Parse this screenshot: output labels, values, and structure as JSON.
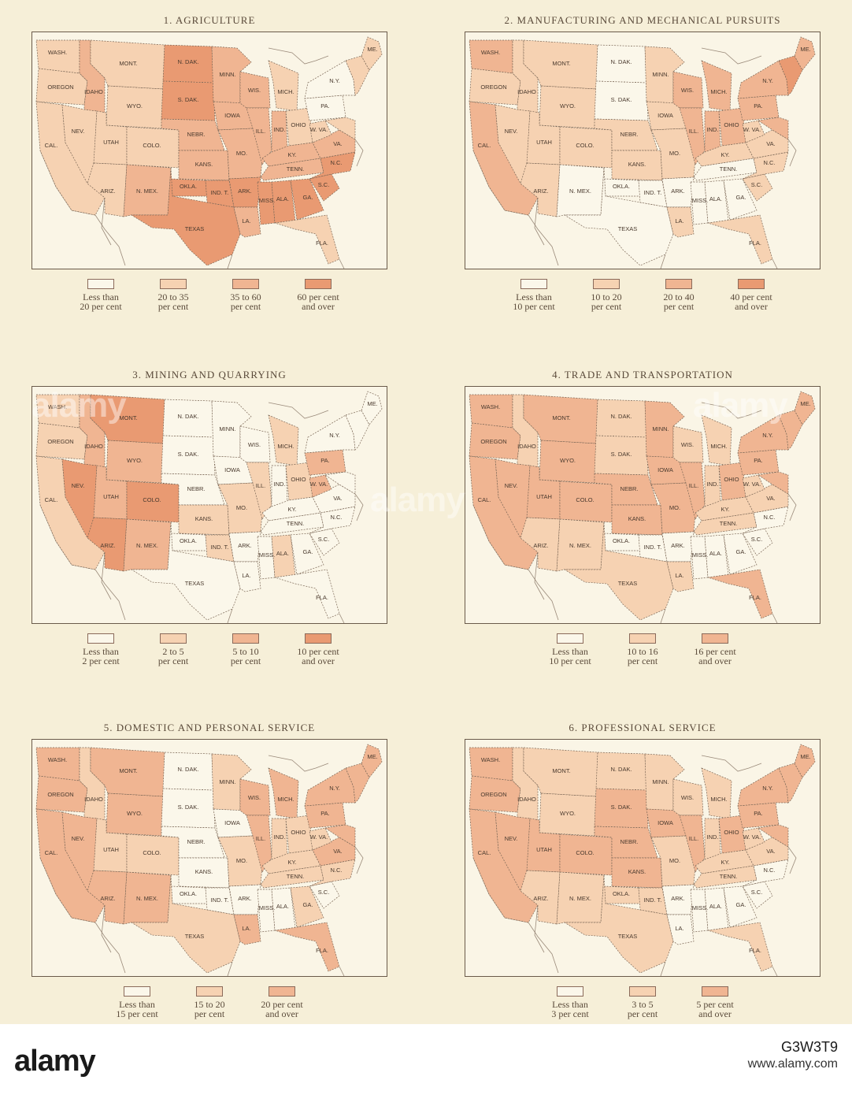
{
  "colors": {
    "level0": "#fbf7ea",
    "level1": "#f6d2b2",
    "level2": "#f0b592",
    "level3": "#e99a72",
    "border": "#7a6655",
    "coast": "#9a8a7a"
  },
  "state_order": [
    "WA",
    "OR",
    "CA",
    "ID",
    "NV",
    "MT",
    "WY",
    "UT",
    "AZ",
    "CO",
    "NM",
    "ND",
    "SD",
    "NE",
    "KS",
    "OK",
    "IT",
    "TX",
    "MN",
    "IA",
    "MO",
    "AR",
    "LA",
    "WI",
    "IL",
    "MI",
    "IN",
    "OH",
    "KY",
    "TN",
    "MS",
    "AL",
    "GA",
    "FL",
    "SC",
    "NC",
    "VA",
    "WV",
    "PA",
    "NY",
    "MD",
    "NE_ST",
    "ME"
  ],
  "state_labels": {
    "WA": "WASH.",
    "OR": "OREGON",
    "CA": "CAL.",
    "ID": "IDAHO",
    "NV": "NEV.",
    "MT": "MONT.",
    "WY": "WYO.",
    "UT": "UTAH",
    "AZ": "ARIZ.",
    "CO": "COLO.",
    "NM": "N. MEX.",
    "ND": "N. DAK.",
    "SD": "S. DAK.",
    "NE": "NEBR.",
    "KS": "KANS.",
    "OK": "OKLA.",
    "IT": "IND. T.",
    "TX": "TEXAS",
    "MN": "MINN.",
    "IA": "IOWA",
    "MO": "MO.",
    "AR": "ARK.",
    "LA": "LA.",
    "WI": "WIS.",
    "IL": "ILL.",
    "MI": "MICH.",
    "IN": "IND.",
    "OH": "OHIO",
    "KY": "KY.",
    "TN": "TENN.",
    "MS": "MISS.",
    "AL": "ALA.",
    "GA": "GA.",
    "FL": "FLA.",
    "SC": "S.C.",
    "NC": "N.C.",
    "VA": "VA.",
    "WV": "W. VA.",
    "PA": "PA.",
    "NY": "N.Y.",
    "MD": "",
    "NE_ST": "",
    "ME": "ME."
  },
  "footer": {
    "brand": "alamy",
    "image_id": "G3W3T9",
    "url": "www.alamy.com"
  },
  "watermark": "alamy",
  "maps": [
    {
      "title": "1. AGRICULTURE",
      "legend": [
        {
          "line1": "Less than",
          "line2": "20 per cent",
          "level": 0
        },
        {
          "line1": "20 to 35",
          "line2": "per cent",
          "level": 1
        },
        {
          "line1": "35 to 60",
          "line2": "per cent",
          "level": 2
        },
        {
          "line1": "60 per cent",
          "line2": "and over",
          "level": 3
        }
      ],
      "levels": {
        "WA": 1,
        "OR": 1,
        "CA": 1,
        "ID": 2,
        "NV": 1,
        "MT": 1,
        "WY": 1,
        "UT": 1,
        "AZ": 1,
        "CO": 1,
        "NM": 2,
        "ND": 3,
        "SD": 3,
        "NE": 2,
        "KS": 2,
        "OK": 3,
        "IT": 3,
        "TX": 3,
        "MN": 2,
        "IA": 2,
        "MO": 2,
        "AR": 3,
        "LA": 2,
        "WI": 2,
        "IL": 2,
        "MI": 1,
        "IN": 2,
        "OH": 1,
        "KY": 2,
        "TN": 2,
        "MS": 3,
        "AL": 3,
        "GA": 3,
        "FL": 1,
        "SC": 3,
        "NC": 3,
        "VA": 2,
        "WV": 1,
        "PA": 0,
        "NY": 0,
        "MD": 1,
        "NE_ST": 1,
        "ME": 1
      }
    },
    {
      "title": "2. MANUFACTURING AND MECHANICAL PURSUITS",
      "legend": [
        {
          "line1": "Less than",
          "line2": "10 per cent",
          "level": 0
        },
        {
          "line1": "10 to 20",
          "line2": "per cent",
          "level": 1
        },
        {
          "line1": "20 to 40",
          "line2": "per cent",
          "level": 2
        },
        {
          "line1": "40 per cent",
          "line2": "and over",
          "level": 3
        }
      ],
      "levels": {
        "WA": 2,
        "OR": 1,
        "CA": 2,
        "ID": 1,
        "NV": 1,
        "MT": 1,
        "WY": 1,
        "UT": 1,
        "AZ": 1,
        "CO": 1,
        "NM": 0,
        "ND": 0,
        "SD": 0,
        "NE": 1,
        "KS": 1,
        "OK": 0,
        "IT": 0,
        "TX": 0,
        "MN": 1,
        "IA": 1,
        "MO": 1,
        "AR": 0,
        "LA": 1,
        "WI": 2,
        "IL": 2,
        "MI": 2,
        "IN": 2,
        "OH": 2,
        "KY": 1,
        "TN": 0,
        "MS": 0,
        "AL": 0,
        "GA": 0,
        "FL": 1,
        "SC": 1,
        "NC": 1,
        "VA": 1,
        "WV": 1,
        "PA": 2,
        "NY": 2,
        "MD": 2,
        "NE_ST": 3,
        "ME": 2
      }
    },
    {
      "title": "3. MINING AND QUARRYING",
      "legend": [
        {
          "line1": "Less than",
          "line2": "2 per cent",
          "level": 0
        },
        {
          "line1": "2 to 5",
          "line2": "per cent",
          "level": 1
        },
        {
          "line1": "5 to 10",
          "line2": "per cent",
          "level": 2
        },
        {
          "line1": "10 per cent",
          "line2": "and over",
          "level": 3
        }
      ],
      "levels": {
        "WA": 1,
        "OR": 1,
        "CA": 1,
        "ID": 2,
        "NV": 3,
        "MT": 3,
        "WY": 2,
        "UT": 2,
        "AZ": 3,
        "CO": 3,
        "NM": 2,
        "ND": 0,
        "SD": 0,
        "NE": 0,
        "KS": 1,
        "OK": 0,
        "IT": 1,
        "TX": 0,
        "MN": 0,
        "IA": 0,
        "MO": 1,
        "AR": 0,
        "LA": 0,
        "WI": 0,
        "IL": 1,
        "MI": 1,
        "IN": 0,
        "OH": 1,
        "KY": 0,
        "TN": 0,
        "MS": 0,
        "AL": 1,
        "GA": 0,
        "FL": 0,
        "SC": 0,
        "NC": 0,
        "VA": 0,
        "WV": 2,
        "PA": 2,
        "NY": 0,
        "MD": 0,
        "NE_ST": 0,
        "ME": 0
      }
    },
    {
      "title": "4. TRADE AND TRANSPORTATION",
      "legend": [
        {
          "line1": "Less than",
          "line2": "10 per cent",
          "level": 0
        },
        {
          "line1": "10 to 16",
          "line2": "per cent",
          "level": 1
        },
        {
          "line1": "16 per cent",
          "line2": "and over",
          "level": 2
        }
      ],
      "levels": {
        "WA": 2,
        "OR": 2,
        "CA": 2,
        "ID": 1,
        "NV": 2,
        "MT": 2,
        "WY": 2,
        "UT": 2,
        "AZ": 1,
        "CO": 2,
        "NM": 1,
        "ND": 1,
        "SD": 1,
        "NE": 2,
        "KS": 2,
        "OK": 0,
        "IT": 0,
        "TX": 1,
        "MN": 2,
        "IA": 2,
        "MO": 2,
        "AR": 0,
        "LA": 1,
        "WI": 1,
        "IL": 2,
        "MI": 1,
        "IN": 1,
        "OH": 2,
        "KY": 1,
        "TN": 1,
        "MS": 0,
        "AL": 0,
        "GA": 0,
        "FL": 2,
        "SC": 0,
        "NC": 0,
        "VA": 1,
        "WV": 1,
        "PA": 2,
        "NY": 2,
        "MD": 2,
        "NE_ST": 2,
        "ME": 2
      }
    },
    {
      "title": "5. DOMESTIC AND PERSONAL SERVICE",
      "legend": [
        {
          "line1": "Less than",
          "line2": "15 per cent",
          "level": 0
        },
        {
          "line1": "15 to 20",
          "line2": "per cent",
          "level": 1
        },
        {
          "line1": "20 per cent",
          "line2": "and over",
          "level": 2
        }
      ],
      "levels": {
        "WA": 2,
        "OR": 2,
        "CA": 2,
        "ID": 1,
        "NV": 2,
        "MT": 2,
        "WY": 2,
        "UT": 1,
        "AZ": 2,
        "CO": 1,
        "NM": 2,
        "ND": 0,
        "SD": 0,
        "NE": 0,
        "KS": 0,
        "OK": 0,
        "IT": 0,
        "TX": 1,
        "MN": 1,
        "IA": 0,
        "MO": 1,
        "AR": 0,
        "LA": 2,
        "WI": 2,
        "IL": 2,
        "MI": 2,
        "IN": 1,
        "OH": 1,
        "KY": 1,
        "TN": 1,
        "MS": 0,
        "AL": 0,
        "GA": 1,
        "FL": 2,
        "SC": 0,
        "NC": 1,
        "VA": 2,
        "WV": 1,
        "PA": 2,
        "NY": 2,
        "MD": 2,
        "NE_ST": 2,
        "ME": 2
      }
    },
    {
      "title": "6. PROFESSIONAL SERVICE",
      "legend": [
        {
          "line1": "Less than",
          "line2": "3 per cent",
          "level": 0
        },
        {
          "line1": "3 to 5",
          "line2": "per cent",
          "level": 1
        },
        {
          "line1": "5 per cent",
          "line2": "and over",
          "level": 2
        }
      ],
      "levels": {
        "WA": 2,
        "OR": 2,
        "CA": 2,
        "ID": 1,
        "NV": 2,
        "MT": 1,
        "WY": 1,
        "UT": 2,
        "AZ": 1,
        "CO": 2,
        "NM": 1,
        "ND": 1,
        "SD": 2,
        "NE": 2,
        "KS": 2,
        "OK": 1,
        "IT": 1,
        "TX": 1,
        "MN": 1,
        "IA": 2,
        "MO": 1,
        "AR": 0,
        "LA": 0,
        "WI": 1,
        "IL": 2,
        "MI": 1,
        "IN": 1,
        "OH": 2,
        "KY": 1,
        "TN": 1,
        "MS": 0,
        "AL": 0,
        "GA": 0,
        "FL": 1,
        "SC": 0,
        "NC": 0,
        "VA": 1,
        "WV": 1,
        "PA": 2,
        "NY": 2,
        "MD": 2,
        "NE_ST": 2,
        "ME": 2
      }
    }
  ]
}
